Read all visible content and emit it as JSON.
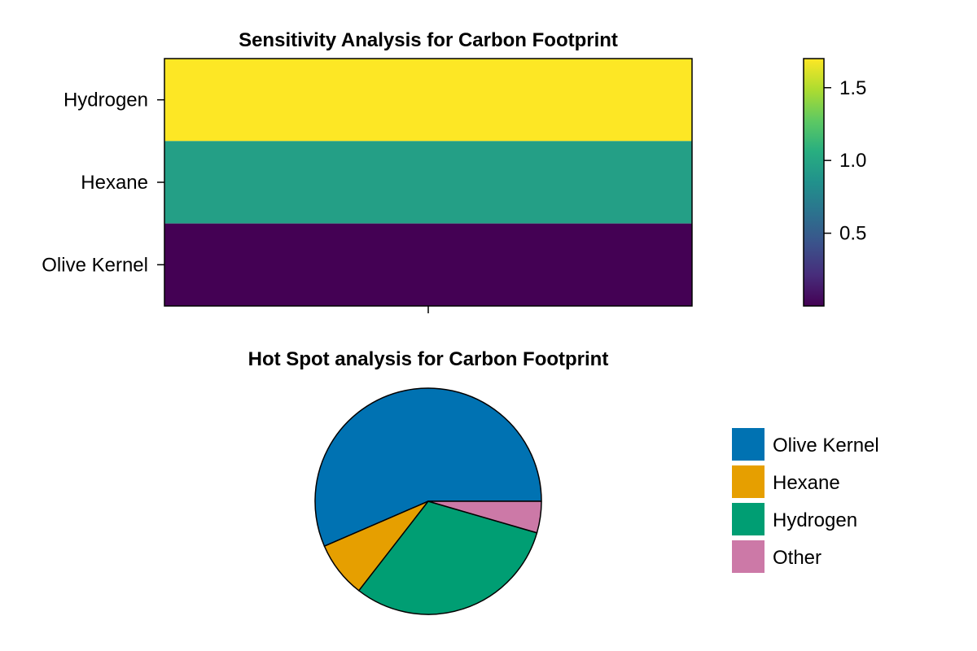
{
  "chart_data": [
    {
      "type": "heatmap",
      "title": "Sensitivity Analysis for Carbon Footprint",
      "categories": [
        "Hydrogen",
        "Hexane",
        "Olive Kernel"
      ],
      "values": [
        1.7,
        0.95,
        0.0
      ],
      "colormap": "viridis",
      "colorbar": {
        "range": [
          0.0,
          1.7
        ],
        "ticks": [
          0.5,
          1.0,
          1.5
        ],
        "tick_labels": [
          "0.5",
          "1.0",
          "1.5"
        ]
      }
    },
    {
      "type": "pie",
      "title": "Hot Spot analysis for Carbon Footprint",
      "categories": [
        "Olive Kernel",
        "Hexane",
        "Hydrogen",
        "Other"
      ],
      "values": [
        56.5,
        8.0,
        31.0,
        4.5
      ],
      "colors": [
        "#0072b2",
        "#e69f00",
        "#009e73",
        "#cc79a7"
      ],
      "legend_position": "right"
    }
  ]
}
